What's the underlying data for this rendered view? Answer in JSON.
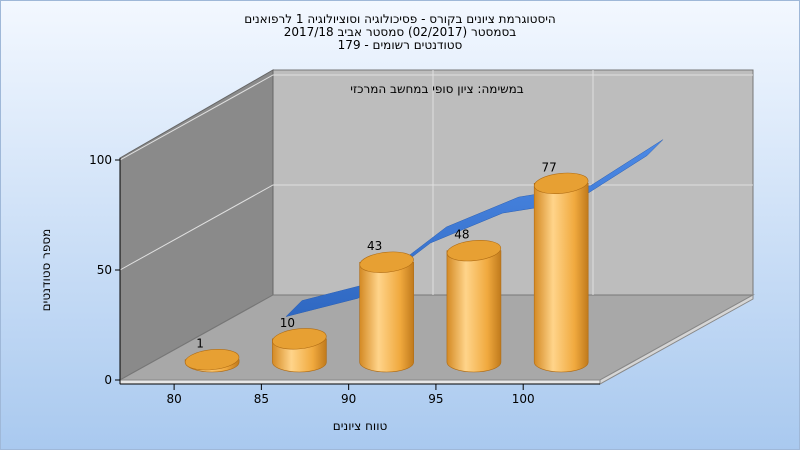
{
  "chart_data": {
    "type": "bar",
    "title_lines": [
      "היסטוגרמת ציונים בקורס - פסיכולוגיה וסוציולוגיה 1 לרפואנים",
      "בסמסטר  (02/2017)  סמסטר אביב 2017/18",
      "סטודנטים רשומים - 179"
    ],
    "annotation": "במשימה: ציון סופי במחשב המרכזי",
    "xlabel": "טווח ציונים",
    "ylabel": "מספר סטודנטים",
    "categories": [
      "80",
      "85",
      "90",
      "95",
      "100"
    ],
    "values": [
      1,
      10,
      43,
      48,
      77
    ],
    "trend_values": [
      18,
      26,
      50,
      63,
      68,
      88
    ],
    "y_ticks": [
      "0",
      "50",
      "100"
    ],
    "ylim": [
      0,
      100
    ],
    "grid": true,
    "colors": {
      "background_top": "#f3f8ff",
      "background_bottom": "#a9c9ef",
      "back_wall": "#bdbdbd",
      "left_wall": "#8a8a8a",
      "floor": "#a8a8a8",
      "bar": "#f0a93e",
      "bar_top": "#e7a033",
      "ribbon": "#3a78d6"
    }
  }
}
